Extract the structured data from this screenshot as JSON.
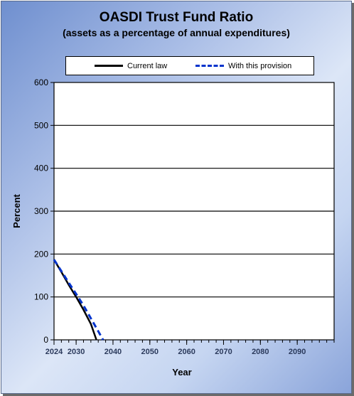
{
  "chart_data": {
    "type": "line",
    "title": "OASDI Trust Fund Ratio",
    "subtitle": "(assets as a percentage of annual expenditures)",
    "xlabel": "Year",
    "ylabel": "Percent",
    "xlim": [
      2024,
      2100
    ],
    "ylim": [
      0,
      600
    ],
    "x_ticks": [
      2024,
      2030,
      2040,
      2050,
      2060,
      2070,
      2080,
      2090
    ],
    "y_ticks": [
      0,
      100,
      200,
      300,
      400,
      500,
      600
    ],
    "grid": true,
    "legend_position": "top",
    "series": [
      {
        "name": "Current law",
        "color": "#000000",
        "style": "solid",
        "x": [
          2024,
          2026,
          2028,
          2030,
          2032,
          2034,
          2035.5
        ],
        "y": [
          187,
          158,
          128,
          100,
          70,
          37,
          0
        ]
      },
      {
        "name": "With this provision",
        "color": "#0033cc",
        "style": "dashed",
        "x": [
          2024,
          2026,
          2028,
          2030,
          2032,
          2034,
          2036,
          2037.3
        ],
        "y": [
          187,
          160,
          133,
          107,
          80,
          50,
          20,
          0
        ]
      }
    ]
  }
}
